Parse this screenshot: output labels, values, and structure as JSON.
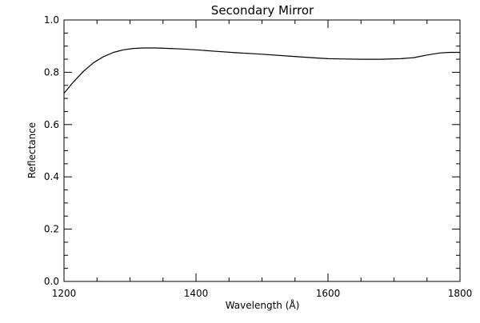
{
  "chart_data": {
    "type": "line",
    "title": "Secondary Mirror",
    "xlabel": "Wavelength (Å)",
    "ylabel": "Reflectance",
    "xlim": [
      1200,
      1800
    ],
    "ylim": [
      0.0,
      1.0
    ],
    "xticks": [
      1200,
      1400,
      1600,
      1800
    ],
    "xtick_labels": [
      "1200",
      "1400",
      "1600",
      "1800"
    ],
    "yticks": [
      0.0,
      0.2,
      0.4,
      0.6,
      0.8,
      1.0
    ],
    "ytick_labels": [
      "0.0",
      "0.2",
      "0.4",
      "0.6",
      "0.8",
      "1.0"
    ],
    "grid": false,
    "series": [
      {
        "x": [
          1200,
          1215,
          1230,
          1245,
          1260,
          1275,
          1290,
          1305,
          1320,
          1340,
          1360,
          1380,
          1400,
          1430,
          1460,
          1500,
          1540,
          1580,
          1600,
          1620,
          1650,
          1680,
          1710,
          1730,
          1750,
          1770,
          1785,
          1800
        ],
        "y": [
          0.72,
          0.765,
          0.805,
          0.837,
          0.86,
          0.876,
          0.886,
          0.891,
          0.893,
          0.893,
          0.891,
          0.889,
          0.886,
          0.88,
          0.875,
          0.869,
          0.862,
          0.855,
          0.852,
          0.851,
          0.85,
          0.85,
          0.852,
          0.856,
          0.866,
          0.874,
          0.876,
          0.876
        ]
      }
    ]
  }
}
